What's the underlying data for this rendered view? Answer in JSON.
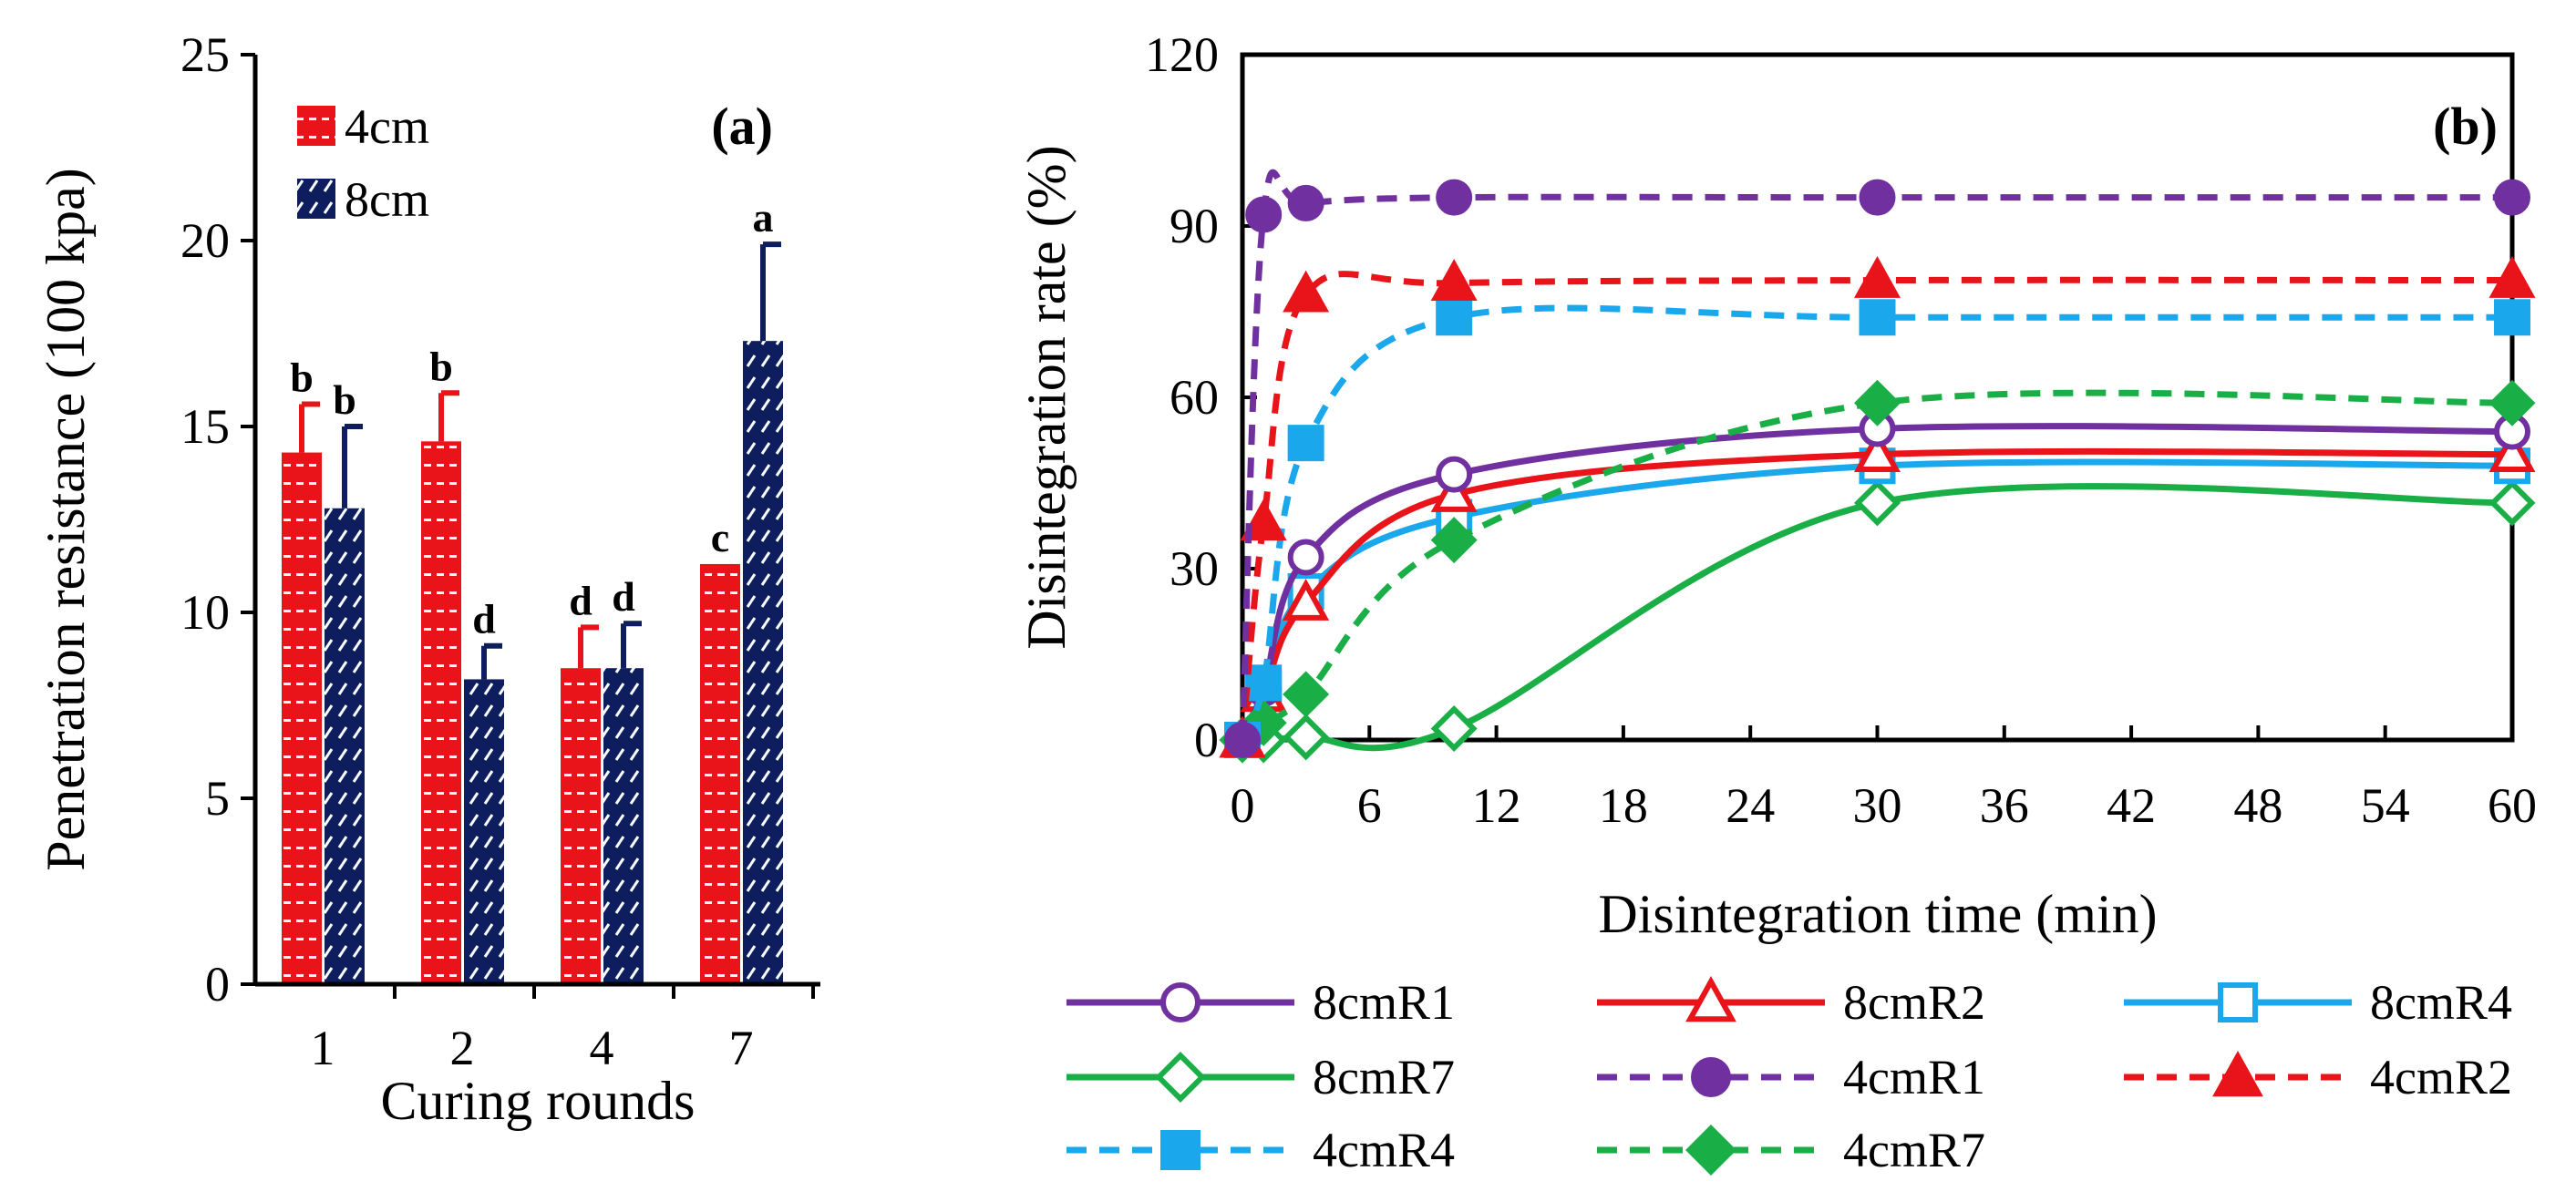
{
  "chart_data": [
    {
      "type": "bar",
      "panel": "(a)",
      "xlabel": "Curing rounds",
      "ylabel": "Penetration resistance (100 kpa)",
      "ylim": [
        0,
        25
      ],
      "yticks": [
        "0",
        "5",
        "10",
        "15",
        "20",
        "25"
      ],
      "categories": [
        "1",
        "2",
        "4",
        "7"
      ],
      "series": [
        {
          "name": "4cm",
          "color": "#e8141a",
          "values": [
            14.3,
            14.6,
            8.5,
            11.3
          ],
          "errors": [
            1.3,
            1.3,
            1.1,
            0
          ],
          "letters": [
            "b",
            "b",
            "d",
            "c"
          ]
        },
        {
          "name": "8cm",
          "color": "#0d1d5e",
          "values": [
            12.8,
            8.2,
            8.5,
            17.3
          ],
          "errors": [
            2.2,
            0.9,
            1.2,
            2.6
          ],
          "letters": [
            "b",
            "d",
            "d",
            "a"
          ]
        }
      ]
    },
    {
      "type": "line",
      "panel": "(b)",
      "xlabel": "Disintegration time (min)",
      "ylabel": "Disintegration rate (%)",
      "xlim": [
        0,
        60
      ],
      "ylim": [
        0,
        120
      ],
      "xticks": [
        "0",
        "6",
        "12",
        "18",
        "24",
        "30",
        "36",
        "42",
        "48",
        "54",
        "60"
      ],
      "yticks": [
        "0",
        "30",
        "60",
        "90",
        "120"
      ],
      "x": [
        0,
        1,
        3,
        10,
        30,
        60
      ],
      "series": [
        {
          "name": "8cmR1",
          "color": "#7030a0",
          "dashed": false,
          "marker": "circle",
          "filled": false,
          "values": [
            0,
            9,
            32,
            46.5,
            54.5,
            54
          ]
        },
        {
          "name": "8cmR2",
          "color": "#e8141a",
          "dashed": false,
          "marker": "triangle",
          "filled": false,
          "values": [
            0,
            8,
            24,
            43,
            50,
            50
          ]
        },
        {
          "name": "8cmR4",
          "color": "#1aa7ec",
          "dashed": false,
          "marker": "square",
          "filled": false,
          "values": [
            0,
            9,
            26,
            39,
            48,
            48
          ]
        },
        {
          "name": "8cmR7",
          "color": "#1aae46",
          "dashed": false,
          "marker": "diamond",
          "filled": false,
          "values": [
            0,
            0,
            0.5,
            2,
            41.5,
            41.5
          ]
        },
        {
          "name": "4cmR1",
          "color": "#7030a0",
          "dashed": true,
          "marker": "circle",
          "filled": true,
          "values": [
            0,
            92,
            94,
            95,
            95,
            95
          ]
        },
        {
          "name": "4cmR2",
          "color": "#e8141a",
          "dashed": true,
          "marker": "triangle",
          "filled": true,
          "values": [
            0,
            38,
            78,
            80,
            80.5,
            80.5
          ]
        },
        {
          "name": "4cmR4",
          "color": "#1aa7ec",
          "dashed": true,
          "marker": "square",
          "filled": true,
          "values": [
            0,
            10,
            52,
            74,
            74,
            74
          ]
        },
        {
          "name": "4cmR7",
          "color": "#1aae46",
          "dashed": true,
          "marker": "diamond",
          "filled": true,
          "values": [
            0,
            3,
            8,
            35,
            59,
            59
          ]
        }
      ]
    }
  ]
}
